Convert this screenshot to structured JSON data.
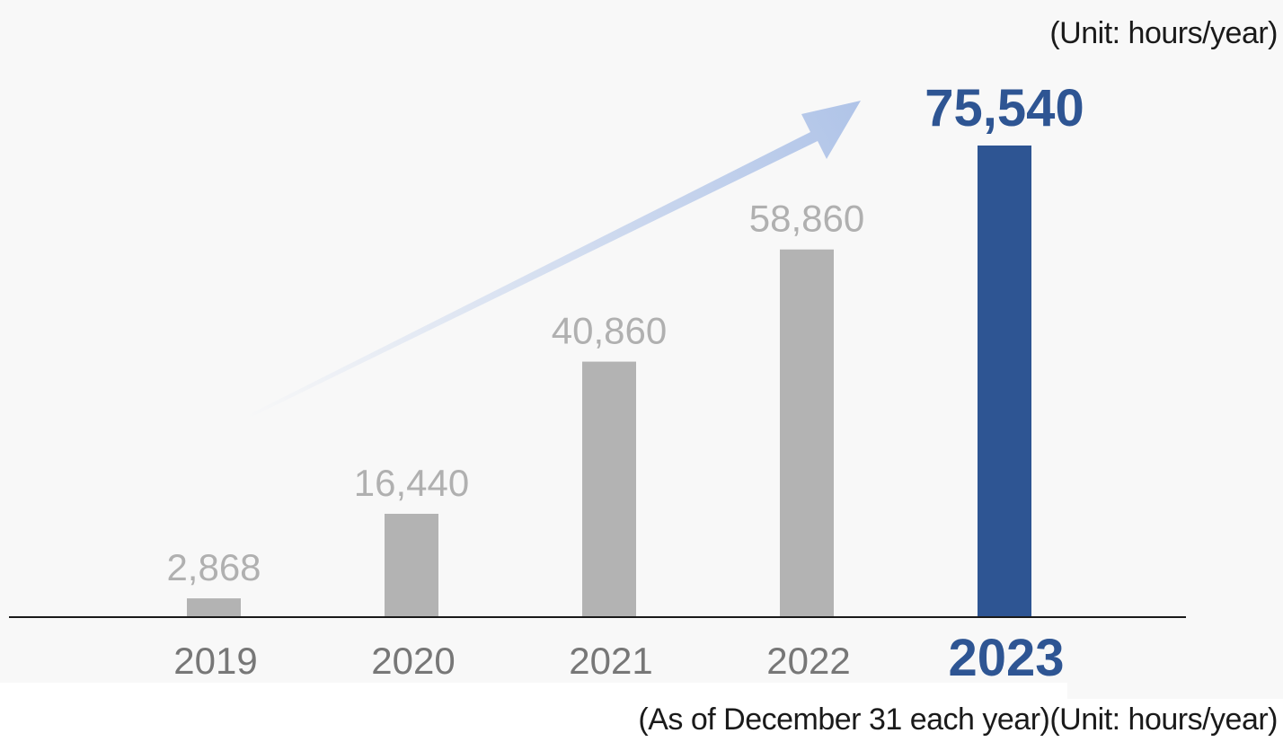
{
  "unit_label": "(Unit: hours/year)",
  "footnote": {
    "as_of": "(As of December 31 each year)",
    "unit": "(Unit: hours/year)"
  },
  "colors": {
    "bar": "#b3b3b3",
    "highlight": "#2e5593",
    "value_label": "#b0b0b0",
    "category_label": "#777777",
    "arrow": "#b0c4e8",
    "axis": "#1a1a1a"
  },
  "chart_data": {
    "type": "bar",
    "categories": [
      "2019",
      "2020",
      "2021",
      "2022",
      "2023"
    ],
    "values": [
      2868,
      16440,
      40860,
      58860,
      75540
    ],
    "value_labels": [
      "2,868",
      "16,440",
      "40,860",
      "58,860",
      "75,540"
    ],
    "highlight_index": 4,
    "ylim": [
      0,
      75540
    ],
    "grid": false,
    "annotation": "upward trend arrow"
  }
}
